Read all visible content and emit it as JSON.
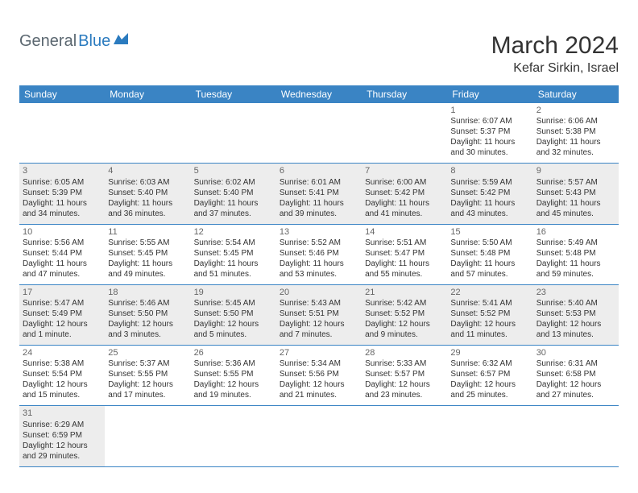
{
  "logo": {
    "text1": "General",
    "text2": "Blue"
  },
  "title": "March 2024",
  "location": "Kefar Sirkin, Israel",
  "colors": {
    "header_bg": "#3a84c4",
    "header_text": "#ffffff",
    "row_alt_bg": "#ededed",
    "border": "#3a84c4",
    "logo_gray": "#5b6770",
    "logo_blue": "#2b7bbf"
  },
  "weekdays": [
    "Sunday",
    "Monday",
    "Tuesday",
    "Wednesday",
    "Thursday",
    "Friday",
    "Saturday"
  ],
  "weeks": [
    {
      "alt": false,
      "days": [
        null,
        null,
        null,
        null,
        null,
        {
          "n": "1",
          "sr": "Sunrise: 6:07 AM",
          "ss": "Sunset: 5:37 PM",
          "d1": "Daylight: 11 hours",
          "d2": "and 30 minutes."
        },
        {
          "n": "2",
          "sr": "Sunrise: 6:06 AM",
          "ss": "Sunset: 5:38 PM",
          "d1": "Daylight: 11 hours",
          "d2": "and 32 minutes."
        }
      ]
    },
    {
      "alt": true,
      "days": [
        {
          "n": "3",
          "sr": "Sunrise: 6:05 AM",
          "ss": "Sunset: 5:39 PM",
          "d1": "Daylight: 11 hours",
          "d2": "and 34 minutes."
        },
        {
          "n": "4",
          "sr": "Sunrise: 6:03 AM",
          "ss": "Sunset: 5:40 PM",
          "d1": "Daylight: 11 hours",
          "d2": "and 36 minutes."
        },
        {
          "n": "5",
          "sr": "Sunrise: 6:02 AM",
          "ss": "Sunset: 5:40 PM",
          "d1": "Daylight: 11 hours",
          "d2": "and 37 minutes."
        },
        {
          "n": "6",
          "sr": "Sunrise: 6:01 AM",
          "ss": "Sunset: 5:41 PM",
          "d1": "Daylight: 11 hours",
          "d2": "and 39 minutes."
        },
        {
          "n": "7",
          "sr": "Sunrise: 6:00 AM",
          "ss": "Sunset: 5:42 PM",
          "d1": "Daylight: 11 hours",
          "d2": "and 41 minutes."
        },
        {
          "n": "8",
          "sr": "Sunrise: 5:59 AM",
          "ss": "Sunset: 5:42 PM",
          "d1": "Daylight: 11 hours",
          "d2": "and 43 minutes."
        },
        {
          "n": "9",
          "sr": "Sunrise: 5:57 AM",
          "ss": "Sunset: 5:43 PM",
          "d1": "Daylight: 11 hours",
          "d2": "and 45 minutes."
        }
      ]
    },
    {
      "alt": false,
      "days": [
        {
          "n": "10",
          "sr": "Sunrise: 5:56 AM",
          "ss": "Sunset: 5:44 PM",
          "d1": "Daylight: 11 hours",
          "d2": "and 47 minutes."
        },
        {
          "n": "11",
          "sr": "Sunrise: 5:55 AM",
          "ss": "Sunset: 5:45 PM",
          "d1": "Daylight: 11 hours",
          "d2": "and 49 minutes."
        },
        {
          "n": "12",
          "sr": "Sunrise: 5:54 AM",
          "ss": "Sunset: 5:45 PM",
          "d1": "Daylight: 11 hours",
          "d2": "and 51 minutes."
        },
        {
          "n": "13",
          "sr": "Sunrise: 5:52 AM",
          "ss": "Sunset: 5:46 PM",
          "d1": "Daylight: 11 hours",
          "d2": "and 53 minutes."
        },
        {
          "n": "14",
          "sr": "Sunrise: 5:51 AM",
          "ss": "Sunset: 5:47 PM",
          "d1": "Daylight: 11 hours",
          "d2": "and 55 minutes."
        },
        {
          "n": "15",
          "sr": "Sunrise: 5:50 AM",
          "ss": "Sunset: 5:48 PM",
          "d1": "Daylight: 11 hours",
          "d2": "and 57 minutes."
        },
        {
          "n": "16",
          "sr": "Sunrise: 5:49 AM",
          "ss": "Sunset: 5:48 PM",
          "d1": "Daylight: 11 hours",
          "d2": "and 59 minutes."
        }
      ]
    },
    {
      "alt": true,
      "days": [
        {
          "n": "17",
          "sr": "Sunrise: 5:47 AM",
          "ss": "Sunset: 5:49 PM",
          "d1": "Daylight: 12 hours",
          "d2": "and 1 minute."
        },
        {
          "n": "18",
          "sr": "Sunrise: 5:46 AM",
          "ss": "Sunset: 5:50 PM",
          "d1": "Daylight: 12 hours",
          "d2": "and 3 minutes."
        },
        {
          "n": "19",
          "sr": "Sunrise: 5:45 AM",
          "ss": "Sunset: 5:50 PM",
          "d1": "Daylight: 12 hours",
          "d2": "and 5 minutes."
        },
        {
          "n": "20",
          "sr": "Sunrise: 5:43 AM",
          "ss": "Sunset: 5:51 PM",
          "d1": "Daylight: 12 hours",
          "d2": "and 7 minutes."
        },
        {
          "n": "21",
          "sr": "Sunrise: 5:42 AM",
          "ss": "Sunset: 5:52 PM",
          "d1": "Daylight: 12 hours",
          "d2": "and 9 minutes."
        },
        {
          "n": "22",
          "sr": "Sunrise: 5:41 AM",
          "ss": "Sunset: 5:52 PM",
          "d1": "Daylight: 12 hours",
          "d2": "and 11 minutes."
        },
        {
          "n": "23",
          "sr": "Sunrise: 5:40 AM",
          "ss": "Sunset: 5:53 PM",
          "d1": "Daylight: 12 hours",
          "d2": "and 13 minutes."
        }
      ]
    },
    {
      "alt": false,
      "days": [
        {
          "n": "24",
          "sr": "Sunrise: 5:38 AM",
          "ss": "Sunset: 5:54 PM",
          "d1": "Daylight: 12 hours",
          "d2": "and 15 minutes."
        },
        {
          "n": "25",
          "sr": "Sunrise: 5:37 AM",
          "ss": "Sunset: 5:55 PM",
          "d1": "Daylight: 12 hours",
          "d2": "and 17 minutes."
        },
        {
          "n": "26",
          "sr": "Sunrise: 5:36 AM",
          "ss": "Sunset: 5:55 PM",
          "d1": "Daylight: 12 hours",
          "d2": "and 19 minutes."
        },
        {
          "n": "27",
          "sr": "Sunrise: 5:34 AM",
          "ss": "Sunset: 5:56 PM",
          "d1": "Daylight: 12 hours",
          "d2": "and 21 minutes."
        },
        {
          "n": "28",
          "sr": "Sunrise: 5:33 AM",
          "ss": "Sunset: 5:57 PM",
          "d1": "Daylight: 12 hours",
          "d2": "and 23 minutes."
        },
        {
          "n": "29",
          "sr": "Sunrise: 6:32 AM",
          "ss": "Sunset: 6:57 PM",
          "d1": "Daylight: 12 hours",
          "d2": "and 25 minutes."
        },
        {
          "n": "30",
          "sr": "Sunrise: 6:31 AM",
          "ss": "Sunset: 6:58 PM",
          "d1": "Daylight: 12 hours",
          "d2": "and 27 minutes."
        }
      ]
    },
    {
      "alt": true,
      "days": [
        {
          "n": "31",
          "sr": "Sunrise: 6:29 AM",
          "ss": "Sunset: 6:59 PM",
          "d1": "Daylight: 12 hours",
          "d2": "and 29 minutes."
        },
        null,
        null,
        null,
        null,
        null,
        null
      ]
    }
  ]
}
